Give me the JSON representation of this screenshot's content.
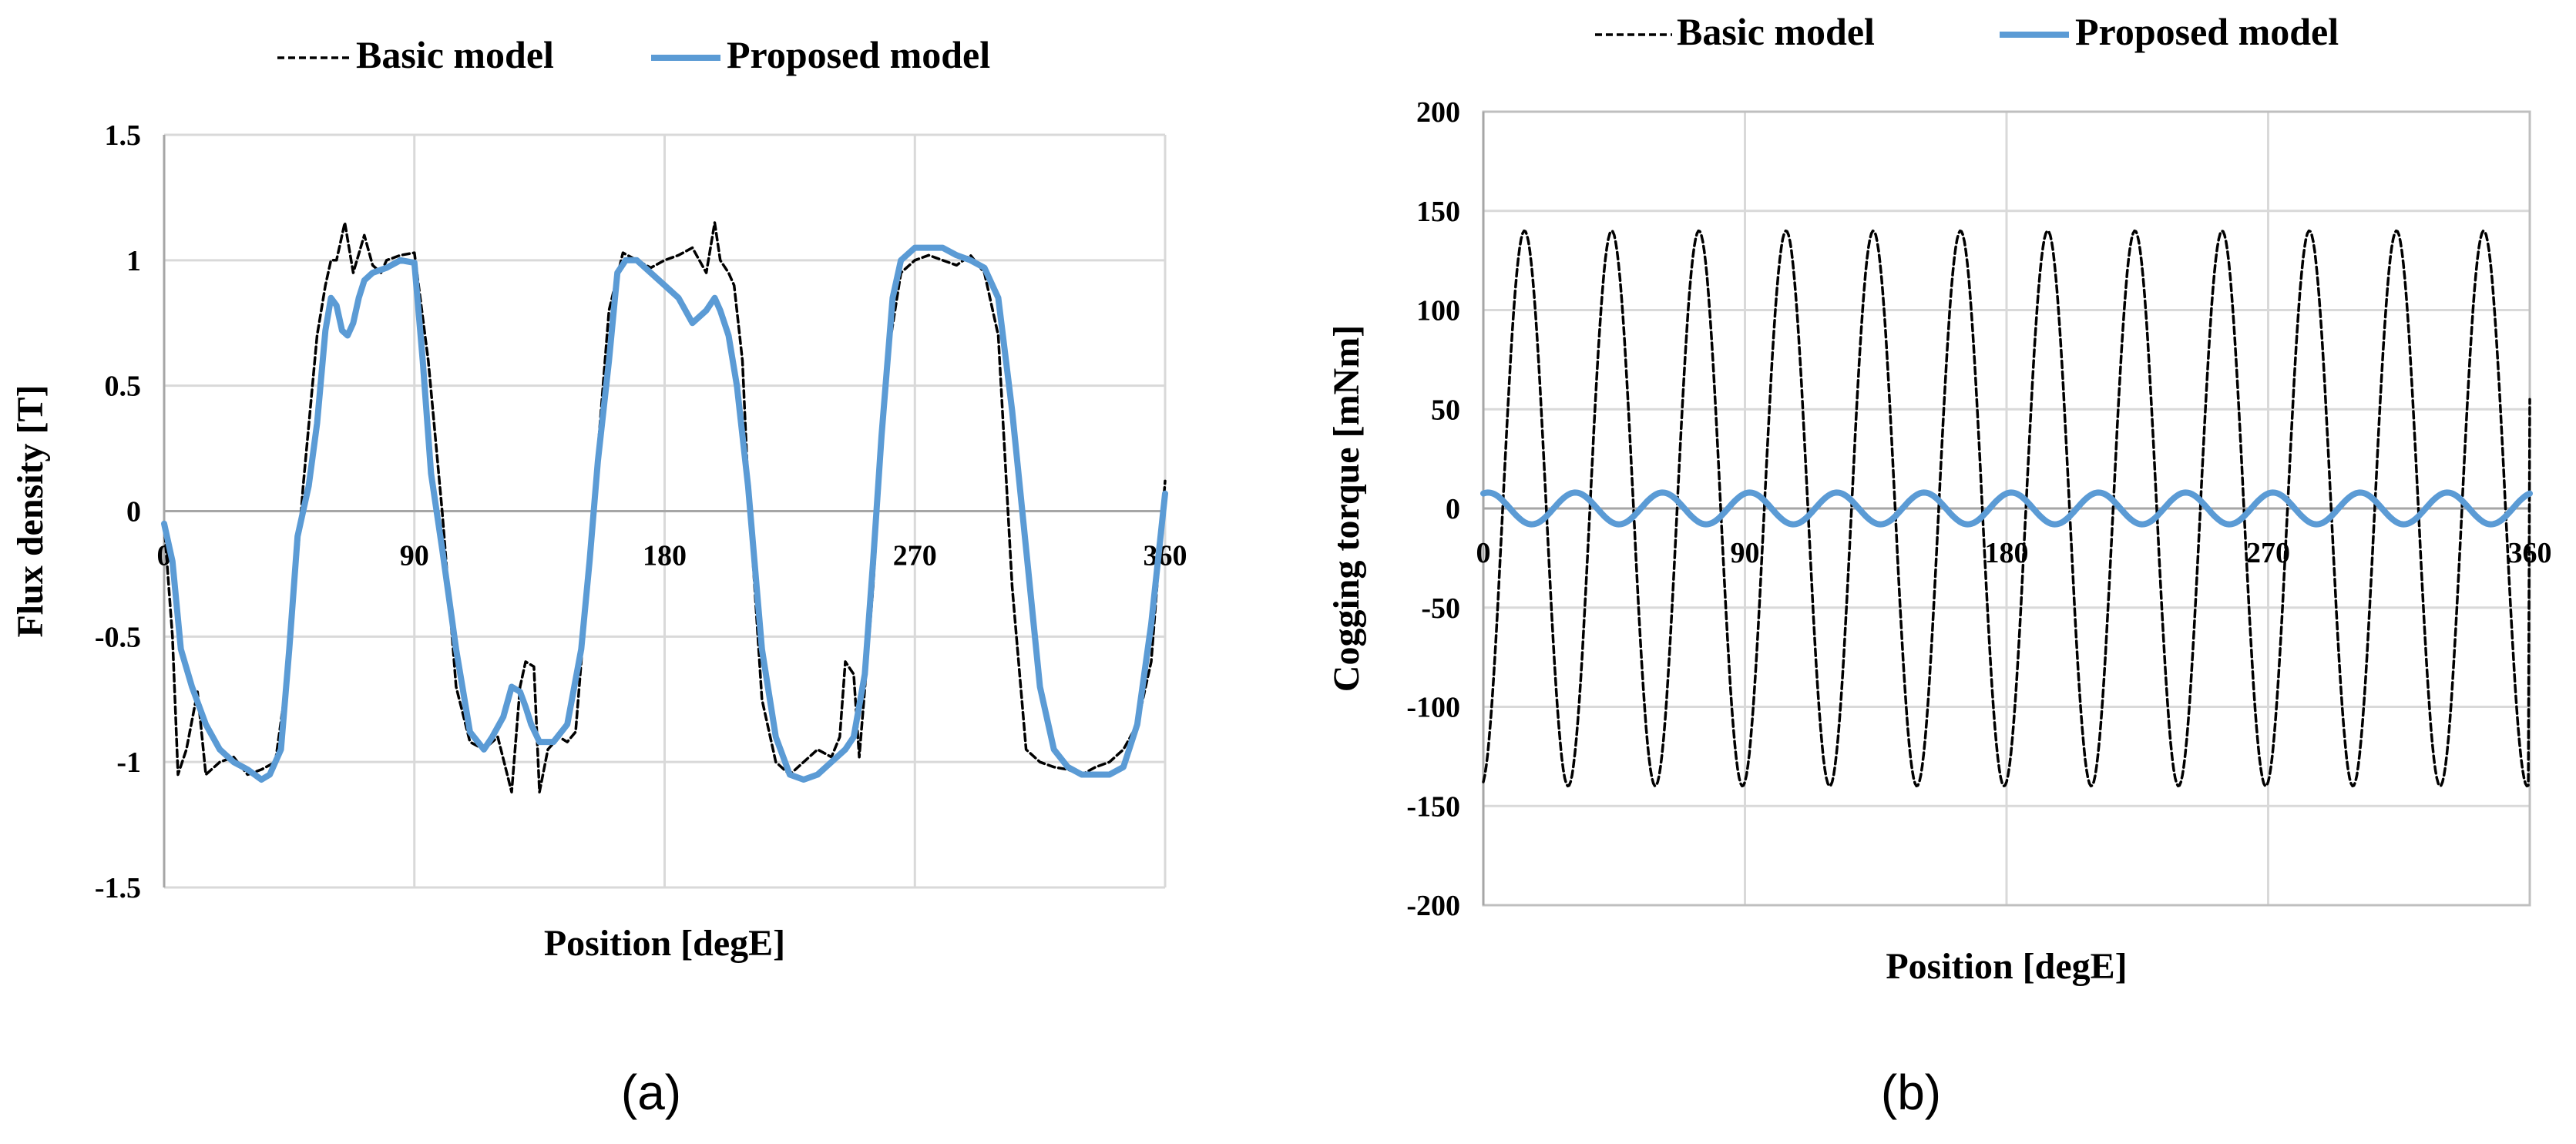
{
  "colors": {
    "basic": "#000000",
    "proposed": "#5b9bd5",
    "grid": "#d9d9d9"
  },
  "chart_data": [
    {
      "type": "line",
      "panel_label": "(a)",
      "xlabel": "Position [degE]",
      "ylabel": "Flux density [T]",
      "xlim": [
        0,
        360
      ],
      "ylim": [
        -1.5,
        1.5
      ],
      "xticks": [
        0,
        90,
        180,
        270,
        360
      ],
      "yticks": [
        1.5,
        1,
        0.5,
        0,
        -0.5,
        -1,
        -1.5
      ],
      "ytick_labels": [
        "1.5",
        "1",
        "0.5",
        "0",
        "-0.5",
        "-1",
        "-1.5"
      ],
      "legend": "top",
      "grid": true,
      "series": [
        {
          "name": "Basic model",
          "style": "dashed",
          "x": [
            0,
            3,
            5,
            8,
            12,
            15,
            20,
            25,
            30,
            35,
            40,
            45,
            50,
            55,
            58,
            60,
            62,
            65,
            68,
            72,
            75,
            78,
            80,
            85,
            90,
            95,
            100,
            105,
            110,
            115,
            120,
            125,
            128,
            130,
            133,
            135,
            138,
            142,
            145,
            148,
            150,
            155,
            160,
            165,
            170,
            175,
            180,
            185,
            190,
            195,
            198,
            200,
            203,
            205,
            208,
            210,
            215,
            220,
            225,
            230,
            235,
            240,
            243,
            245,
            248,
            250,
            255,
            260,
            265,
            270,
            275,
            280,
            285,
            290,
            295,
            300,
            305,
            310,
            315,
            320,
            325,
            330,
            335,
            340,
            345,
            350,
            355,
            360
          ],
          "y": [
            -0.05,
            -0.5,
            -1.05,
            -0.95,
            -0.72,
            -1.05,
            -1.0,
            -0.98,
            -1.05,
            -1.03,
            -1.0,
            -0.6,
            0.1,
            0.7,
            0.9,
            1.0,
            1.0,
            1.15,
            0.95,
            1.1,
            0.98,
            0.95,
            1.0,
            1.02,
            1.03,
            0.6,
            0.0,
            -0.7,
            -0.92,
            -0.95,
            -0.9,
            -1.12,
            -0.7,
            -0.6,
            -0.62,
            -1.12,
            -0.95,
            -0.9,
            -0.92,
            -0.88,
            -0.6,
            0.1,
            0.8,
            1.03,
            1.0,
            0.97,
            1.0,
            1.02,
            1.05,
            0.95,
            1.15,
            1.0,
            0.95,
            0.9,
            0.6,
            0.1,
            -0.75,
            -1.0,
            -1.05,
            -1.0,
            -0.95,
            -0.98,
            -0.9,
            -0.6,
            -0.65,
            -0.98,
            -0.3,
            0.6,
            0.95,
            1.0,
            1.02,
            1.0,
            0.98,
            1.02,
            0.95,
            0.7,
            -0.3,
            -0.95,
            -1.0,
            -1.02,
            -1.03,
            -1.05,
            -1.02,
            -1.0,
            -0.95,
            -0.85,
            -0.6,
            0.12
          ]
        },
        {
          "name": "Proposed model",
          "style": "solid",
          "x": [
            0,
            3,
            6,
            10,
            15,
            20,
            25,
            30,
            35,
            38,
            42,
            45,
            48,
            52,
            55,
            58,
            60,
            62,
            64,
            66,
            68,
            70,
            72,
            75,
            80,
            85,
            90,
            93,
            96,
            100,
            105,
            110,
            115,
            118,
            122,
            125,
            128,
            130,
            132,
            135,
            140,
            145,
            150,
            153,
            156,
            160,
            163,
            166,
            170,
            175,
            180,
            185,
            190,
            195,
            198,
            200,
            203,
            206,
            210,
            215,
            220,
            225,
            230,
            235,
            240,
            245,
            248,
            252,
            255,
            258,
            262,
            265,
            270,
            275,
            280,
            285,
            290,
            295,
            300,
            305,
            310,
            315,
            320,
            325,
            330,
            335,
            340,
            345,
            350,
            355,
            360
          ],
          "y": [
            -0.05,
            -0.2,
            -0.55,
            -0.7,
            -0.85,
            -0.95,
            -1.0,
            -1.03,
            -1.07,
            -1.05,
            -0.95,
            -0.55,
            -0.1,
            0.1,
            0.35,
            0.72,
            0.85,
            0.82,
            0.72,
            0.7,
            0.75,
            0.85,
            0.92,
            0.95,
            0.97,
            1.0,
            0.99,
            0.6,
            0.15,
            -0.15,
            -0.55,
            -0.88,
            -0.95,
            -0.9,
            -0.82,
            -0.7,
            -0.72,
            -0.78,
            -0.85,
            -0.92,
            -0.92,
            -0.85,
            -0.55,
            -0.2,
            0.2,
            0.6,
            0.95,
            1.0,
            1.0,
            0.95,
            0.9,
            0.85,
            0.75,
            0.8,
            0.85,
            0.8,
            0.7,
            0.5,
            0.1,
            -0.55,
            -0.9,
            -1.05,
            -1.07,
            -1.05,
            -1.0,
            -0.95,
            -0.9,
            -0.65,
            -0.2,
            0.3,
            0.85,
            1.0,
            1.05,
            1.05,
            1.05,
            1.02,
            1.0,
            0.97,
            0.85,
            0.4,
            -0.15,
            -0.7,
            -0.95,
            -1.02,
            -1.05,
            -1.05,
            -1.05,
            -1.02,
            -0.85,
            -0.45,
            0.07
          ]
        }
      ]
    },
    {
      "type": "line",
      "panel_label": "(b)",
      "xlabel": "Position [degE]",
      "ylabel": "Cogging torque [mNm]",
      "xlim": [
        0,
        360
      ],
      "ylim": [
        -200,
        200
      ],
      "xticks": [
        0,
        90,
        180,
        270,
        360
      ],
      "yticks": [
        200,
        150,
        100,
        50,
        0,
        -50,
        -100,
        -150,
        -200
      ],
      "ytick_labels": [
        "200",
        "150",
        "100",
        "50",
        "0",
        "-50",
        "-100",
        "-150",
        "-200"
      ],
      "legend": "top",
      "grid": true,
      "series": [
        {
          "name": "Basic model",
          "style": "dashed",
          "model": {
            "kind": "sine",
            "amplitude": 140,
            "period": 30,
            "phase_deg": -80,
            "end_value": 55
          }
        },
        {
          "name": "Proposed model",
          "style": "solid",
          "model": {
            "kind": "sine",
            "amplitude": 8,
            "period": 30,
            "phase_deg": 70
          }
        }
      ]
    }
  ]
}
